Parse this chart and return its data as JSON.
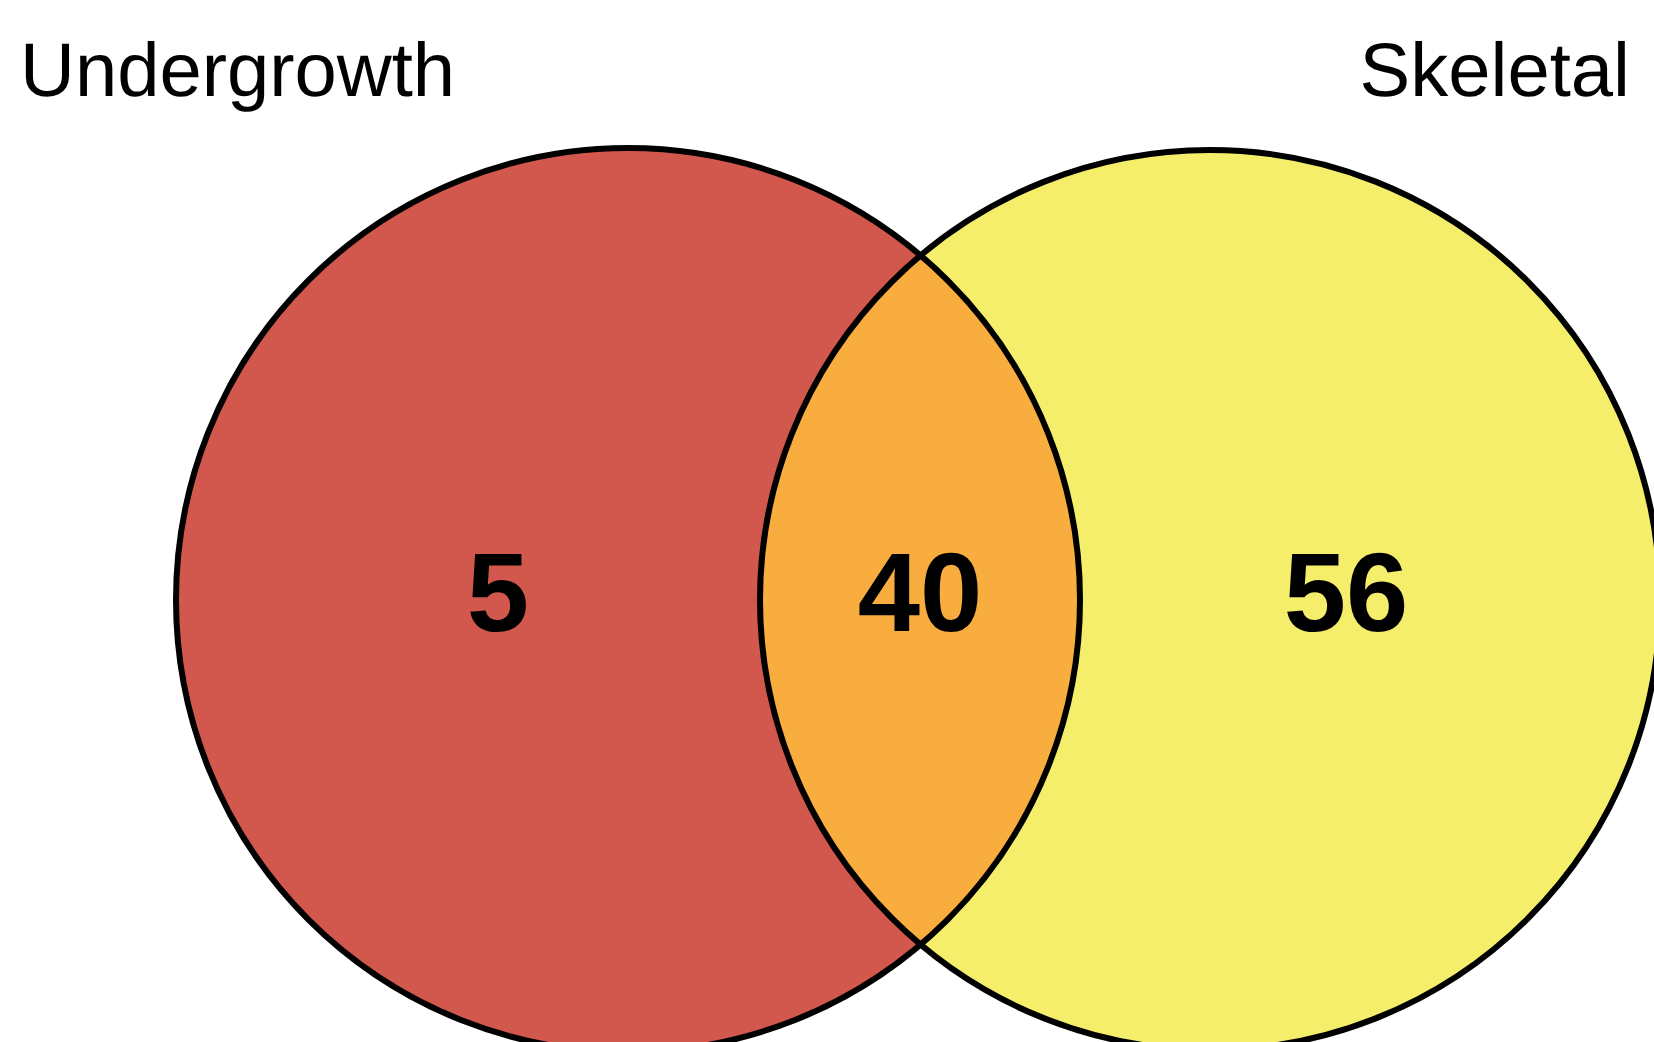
{
  "chart_data": {
    "type": "other",
    "categories": [
      null,
      null,
      null
    ],
    "values": [
      5,
      40,
      56
    ],
    "colors": [
      "#d2584d",
      "#f9ad3f",
      "#f5ee6a"
    ],
    "data_labels": true,
    "annotations": [
      "Undergrowth",
      "Skeletal"
    ]
  }
}
